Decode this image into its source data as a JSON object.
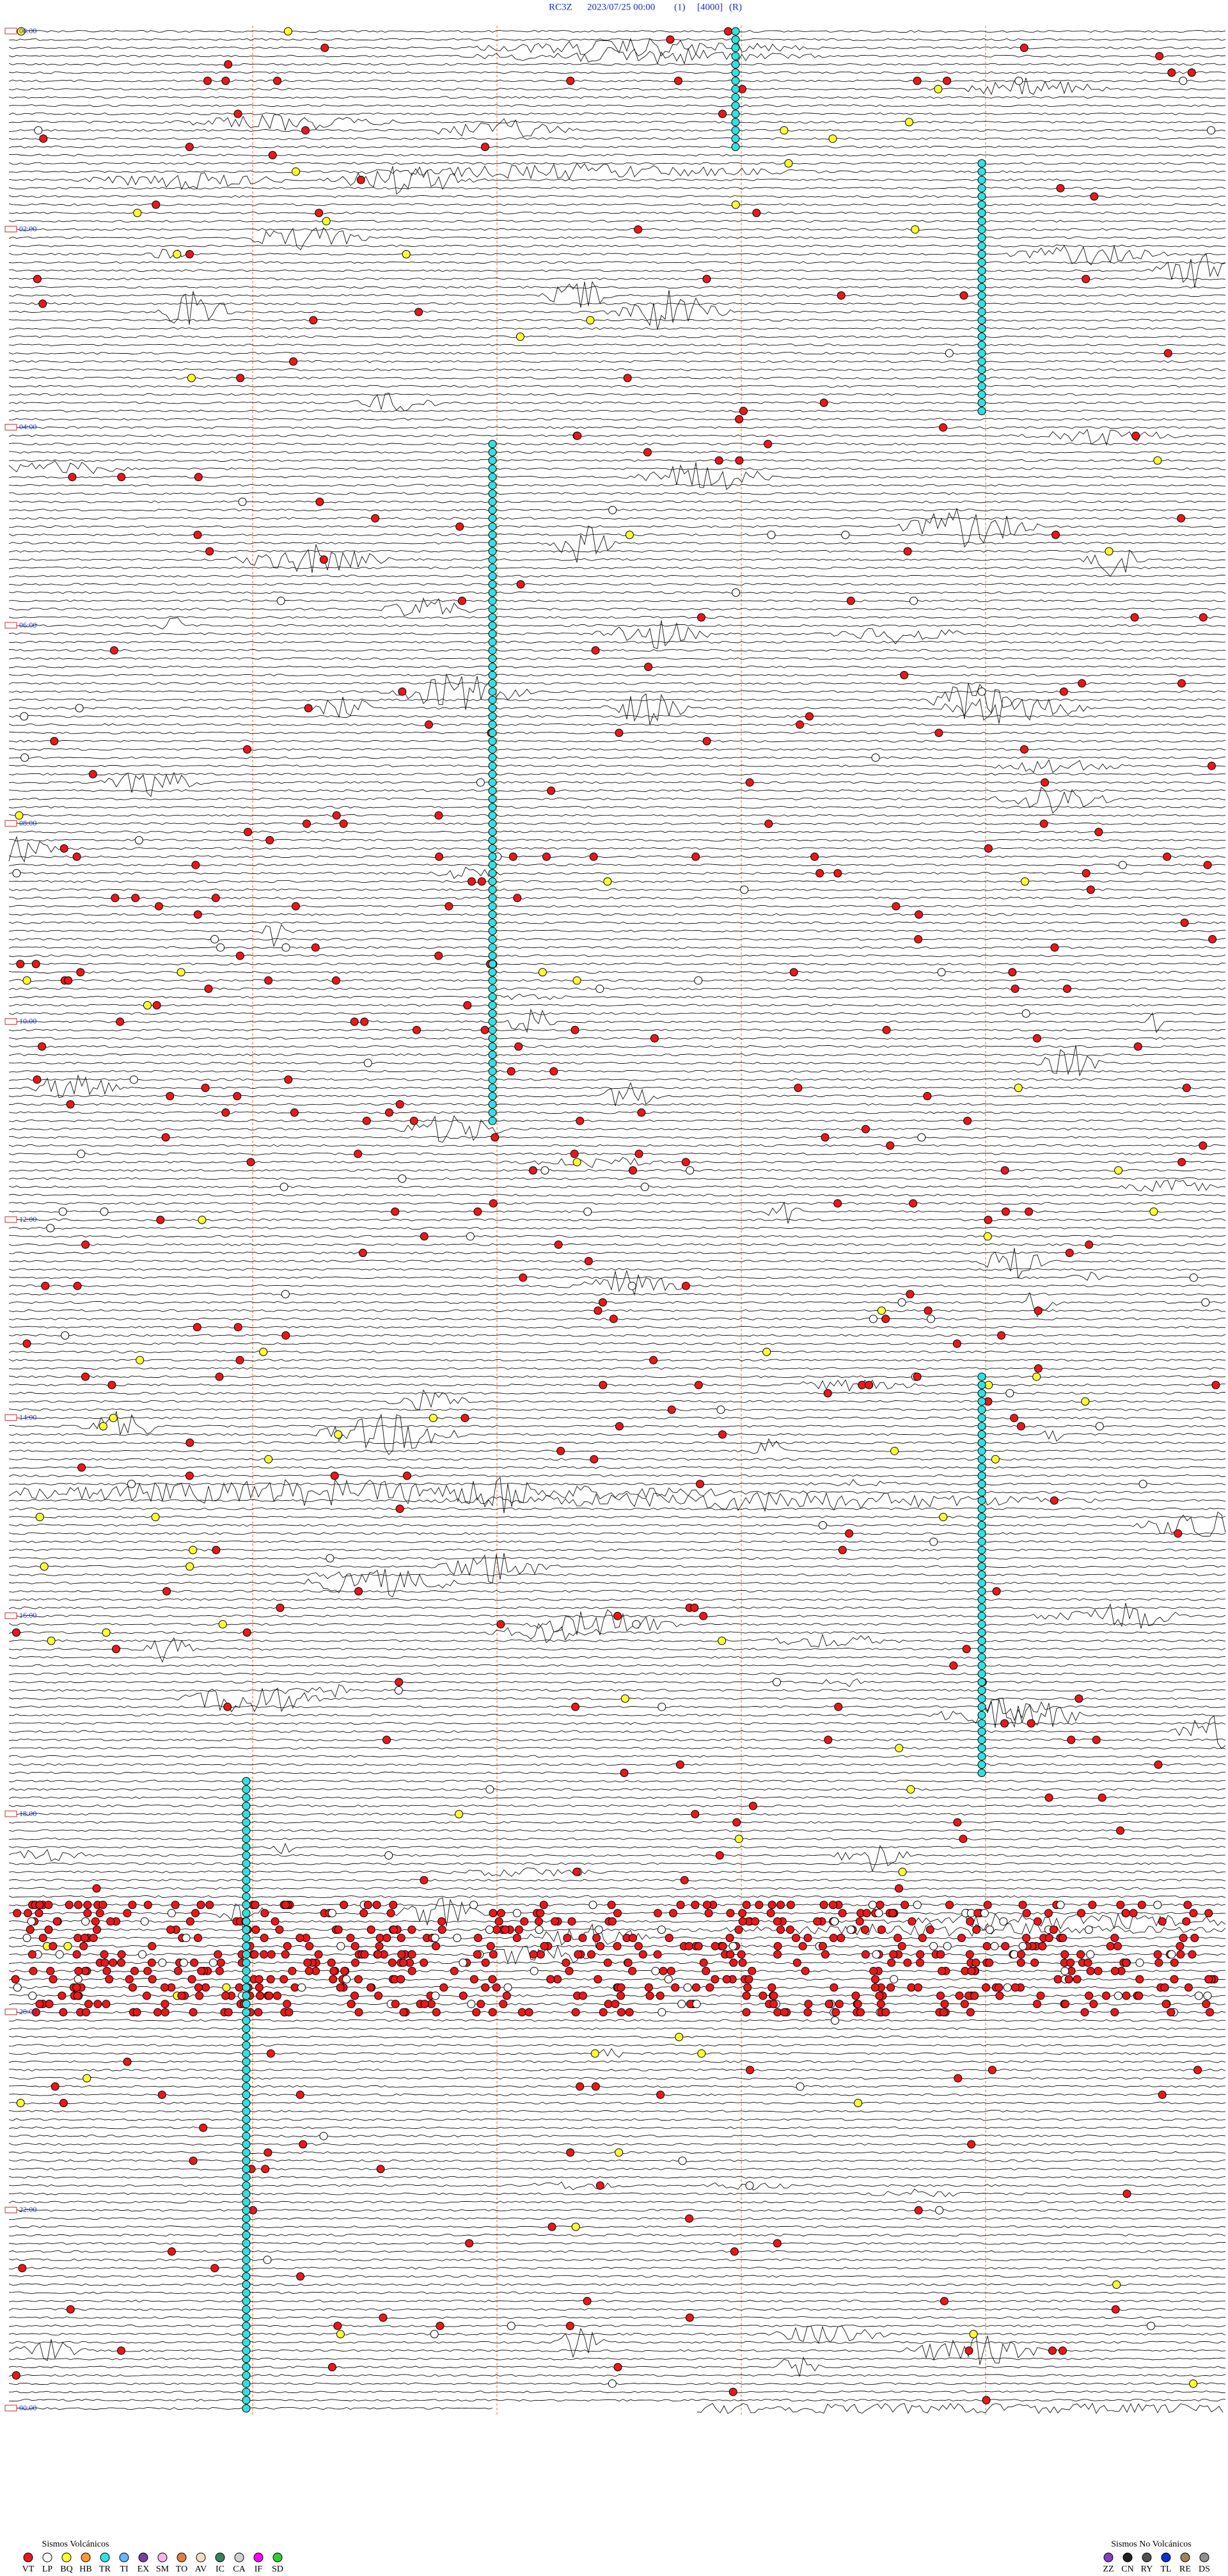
{
  "header": {
    "station": "RC3Z",
    "datetime": "2023/07/25 00:00",
    "channel": "(1)",
    "gain": "[4000]",
    "mode": "(R)"
  },
  "time_labels": [
    "00:00",
    "02:00",
    "04:00",
    "06:00",
    "08:00",
    "10:00",
    "12:00",
    "14:00",
    "16:00",
    "18:00",
    "20:00",
    "22:00",
    "00:00"
  ],
  "legend": {
    "volcanic": {
      "title": "Sismos Volcánicos",
      "items": [
        {
          "code": "VT",
          "color": "#e8181c"
        },
        {
          "code": "LP",
          "color": "#ffffff"
        },
        {
          "code": "BQ",
          "color": "#ffff33"
        },
        {
          "code": "HB",
          "color": "#ff9933"
        },
        {
          "code": "TR",
          "color": "#33e0e0"
        },
        {
          "code": "TI",
          "color": "#66b3ff"
        },
        {
          "code": "EX",
          "color": "#7a3fa0"
        },
        {
          "code": "SM",
          "color": "#ffb3e6"
        },
        {
          "code": "TO",
          "color": "#e08040"
        },
        {
          "code": "AV",
          "color": "#f0e0c0"
        },
        {
          "code": "IC",
          "color": "#3c8060"
        },
        {
          "code": "CA",
          "color": "#d0d0d0"
        },
        {
          "code": "IF",
          "color": "#ff00ff"
        },
        {
          "code": "SD",
          "color": "#33cc33"
        }
      ]
    },
    "non_volcanic": {
      "title": "Sismos No Volcánicos",
      "items": [
        {
          "code": "ZZ",
          "color": "#8040c0"
        },
        {
          "code": "CN",
          "color": "#202020"
        },
        {
          "code": "RY",
          "color": "#505050"
        },
        {
          "code": "TL",
          "color": "#1030d0"
        },
        {
          "code": "RE",
          "color": "#a08060"
        },
        {
          "code": "DS",
          "color": "#909090"
        }
      ]
    }
  }
}
